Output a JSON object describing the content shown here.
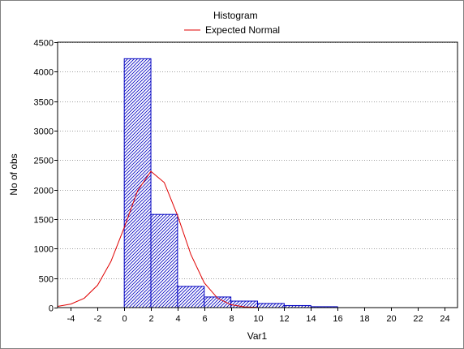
{
  "chart_data": {
    "type": "bar",
    "xlabel": "Var1",
    "ylabel": "No of obs",
    "xlim": [
      -5,
      25
    ],
    "ylim": [
      0,
      4500
    ],
    "grid": true,
    "legend_position": "top-center",
    "x_ticks": [
      -4,
      -2,
      0,
      2,
      4,
      6,
      8,
      10,
      12,
      14,
      16,
      18,
      20,
      22,
      24
    ],
    "y_ticks": [
      0,
      500,
      1000,
      1500,
      2000,
      2500,
      3000,
      3500,
      4000,
      4500
    ],
    "series": [
      {
        "name": "Histogram",
        "kind": "histogram",
        "bins": [
          {
            "from": 0,
            "to": 2,
            "count": 4220
          },
          {
            "from": 2,
            "to": 4,
            "count": 1580
          },
          {
            "from": 4,
            "to": 6,
            "count": 360
          },
          {
            "from": 6,
            "to": 8,
            "count": 180
          },
          {
            "from": 8,
            "to": 10,
            "count": 110
          },
          {
            "from": 10,
            "to": 12,
            "count": 70
          },
          {
            "from": 12,
            "to": 14,
            "count": 35
          },
          {
            "from": 14,
            "to": 16,
            "count": 15
          }
        ]
      },
      {
        "name": "Expected Normal",
        "kind": "line",
        "x": [
          -5,
          -4,
          -3,
          -2,
          -1,
          0,
          1,
          2,
          3,
          4,
          5,
          6,
          7,
          8,
          9,
          10
        ],
        "y": [
          20,
          60,
          160,
          380,
          780,
          1360,
          1980,
          2310,
          2120,
          1560,
          900,
          420,
          160,
          50,
          12,
          3
        ]
      }
    ]
  },
  "colors": {
    "bar_stroke": "#0000c0",
    "bar_hatch": "#0000c0",
    "line": "#e00000",
    "grid": "#a0a0a0"
  }
}
